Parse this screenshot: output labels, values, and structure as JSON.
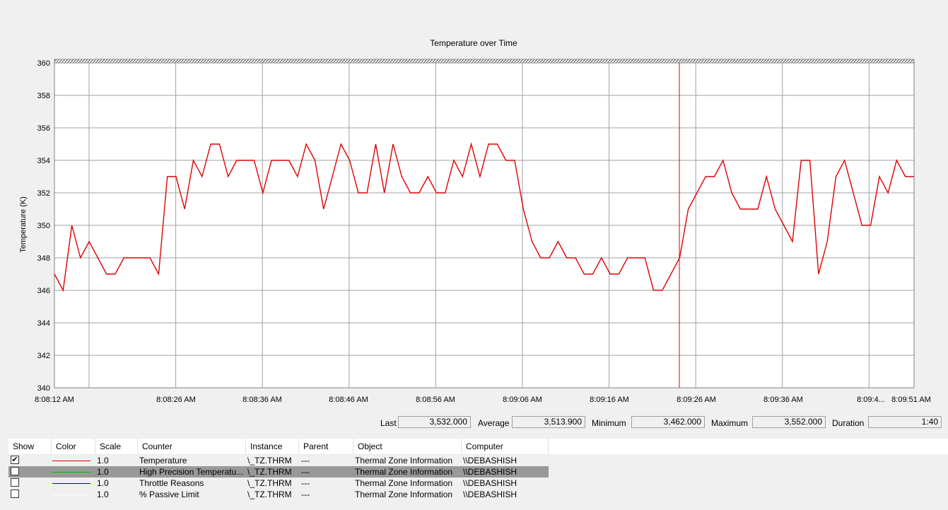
{
  "chart_data": {
    "type": "line",
    "title": "Temperature over Time",
    "ylabel": "Temperature (K)",
    "ylim": [
      340,
      360
    ],
    "y_ticks": [
      "360",
      "358",
      "356",
      "354",
      "352",
      "350",
      "348",
      "346",
      "344",
      "342",
      "340"
    ],
    "x_tick_labels": [
      "8:08:12 AM",
      "8:08:26 AM",
      "8:08:36 AM",
      "8:08:46 AM",
      "8:08:56 AM",
      "8:09:06 AM",
      "8:09:16 AM",
      "8:09:26 AM",
      "8:09:36 AM",
      "8:09:4...",
      "8:09:51 AM"
    ],
    "grid": true,
    "series": [
      {
        "name": "Temperature",
        "color": "#e00000",
        "values": [
          347,
          346,
          350,
          348,
          349,
          348,
          347,
          347,
          348,
          348,
          348,
          348,
          347,
          353,
          353,
          351,
          354,
          353,
          355,
          355,
          353,
          354,
          354,
          354,
          352,
          354,
          354,
          354,
          353,
          355,
          354,
          351,
          353,
          355,
          354,
          352,
          352,
          355,
          352,
          355,
          353,
          352,
          352,
          353,
          352,
          352,
          354,
          353,
          355,
          353,
          355,
          355,
          354,
          354,
          351,
          349,
          348,
          348,
          349,
          348,
          348,
          347,
          347,
          348,
          347,
          347,
          348,
          348,
          348,
          346,
          346,
          347,
          348,
          351,
          352,
          353,
          353,
          354,
          352,
          351,
          351,
          351,
          353,
          351,
          350,
          349,
          354,
          354,
          347,
          349,
          353,
          354,
          352,
          350,
          350,
          353,
          352,
          354,
          353,
          353
        ]
      }
    ]
  },
  "stats": {
    "last_label": "Last",
    "last_value": "3,532.000",
    "average_label": "Average",
    "average_value": "3,513.900",
    "minimum_label": "Minimum",
    "minimum_value": "3,462.000",
    "maximum_label": "Maximum",
    "maximum_value": "3,552.000",
    "duration_label": "Duration",
    "duration_value": "1:40"
  },
  "legend": {
    "headers": {
      "show": "Show",
      "color": "Color",
      "scale": "Scale",
      "counter": "Counter",
      "instance": "Instance",
      "parent": "Parent",
      "object": "Object",
      "computer": "Computer"
    },
    "rows": [
      {
        "checked": "✔",
        "color": "#e00000",
        "scale": "1.0",
        "counter": "Temperature",
        "instance": "\\_TZ.THRM",
        "parent": "---",
        "object": "Thermal Zone Information",
        "computer": "\\\\DEBASHISH"
      },
      {
        "checked": "",
        "color": "#00c000",
        "scale": "1.0",
        "counter": "High Precision Temperatu...",
        "instance": "\\_TZ.THRM",
        "parent": "---",
        "object": "Thermal Zone Information",
        "computer": "\\\\DEBASHISH"
      },
      {
        "checked": "",
        "color": "#0000e0",
        "scale": "1.0",
        "counter": "Throttle Reasons",
        "instance": "\\_TZ.THRM",
        "parent": "---",
        "object": "Thermal Zone Information",
        "computer": "\\\\DEBASHISH"
      },
      {
        "checked": "",
        "color": "#ffffff",
        "scale": "1.0",
        "counter": "% Passive Limit",
        "instance": "\\_TZ.THRM",
        "parent": "---",
        "object": "Thermal Zone Information",
        "computer": "\\\\DEBASHISH"
      }
    ]
  }
}
